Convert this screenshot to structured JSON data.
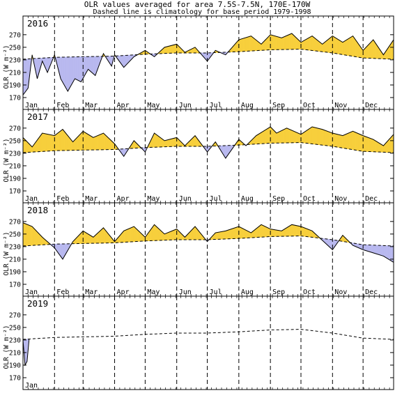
{
  "title": "OLR values averaged for area 7.5S-7.5N, 170E-170W",
  "subtitle": "Dashed line is climatology for base period 1979-1998",
  "chart_data": {
    "type": "area",
    "ylabel": "OLR (W m⁻²)",
    "months": [
      "Jan",
      "Feb",
      "Mar",
      "Apr",
      "May",
      "Jun",
      "Jul",
      "Aug",
      "Sep",
      "Oct",
      "Nov",
      "Dec"
    ],
    "yticks": [
      170,
      190,
      210,
      230,
      250,
      270
    ],
    "ylim": [
      160,
      282
    ],
    "grid": "dashed vertical lines at month boundaries",
    "colors": {
      "above_climatology": "#f7cf3c",
      "below_climatology": "#b9b9ef",
      "line": "#000000"
    },
    "climatology": {
      "x_day": [
        1,
        32,
        60,
        91,
        121,
        152,
        182,
        213,
        244,
        274,
        305,
        335,
        365
      ],
      "values": [
        231,
        234,
        235,
        236,
        239,
        241,
        241,
        243,
        246,
        247,
        241,
        233,
        231
      ]
    },
    "panels": [
      {
        "year": "2016",
        "x_day": [
          1,
          6,
          10,
          15,
          20,
          25,
          32,
          38,
          45,
          52,
          58,
          65,
          72,
          80,
          88,
          91,
          100,
          110,
          121,
          130,
          140,
          152,
          160,
          170,
          182,
          190,
          200,
          213,
          225,
          235,
          244,
          255,
          265,
          274,
          285,
          295,
          305,
          315,
          325,
          335,
          345,
          355,
          365
        ],
        "values": [
          174,
          185,
          238,
          200,
          228,
          210,
          238,
          200,
          180,
          200,
          195,
          215,
          205,
          240,
          220,
          238,
          218,
          235,
          245,
          235,
          250,
          255,
          242,
          250,
          228,
          245,
          238,
          262,
          268,
          255,
          270,
          265,
          272,
          258,
          268,
          255,
          268,
          258,
          268,
          245,
          262,
          238,
          262
        ]
      },
      {
        "year": "2017",
        "x_day": [
          1,
          10,
          20,
          32,
          40,
          50,
          60,
          70,
          80,
          91,
          100,
          110,
          121,
          130,
          140,
          152,
          160,
          170,
          182,
          190,
          200,
          213,
          220,
          230,
          244,
          250,
          260,
          274,
          285,
          295,
          305,
          315,
          325,
          335,
          345,
          355,
          365
        ],
        "values": [
          255,
          240,
          262,
          258,
          268,
          248,
          265,
          255,
          262,
          245,
          225,
          250,
          232,
          262,
          250,
          255,
          242,
          258,
          232,
          248,
          222,
          252,
          242,
          258,
          272,
          262,
          270,
          260,
          272,
          268,
          262,
          258,
          265,
          258,
          252,
          242,
          260
        ]
      },
      {
        "year": "2018",
        "x_day": [
          1,
          10,
          20,
          32,
          40,
          50,
          60,
          70,
          80,
          91,
          100,
          110,
          121,
          130,
          140,
          152,
          160,
          170,
          182,
          190,
          200,
          213,
          225,
          235,
          244,
          255,
          265,
          274,
          285,
          295,
          305,
          315,
          325,
          335,
          345,
          355,
          365
        ],
        "values": [
          268,
          262,
          245,
          228,
          210,
          238,
          255,
          245,
          260,
          238,
          255,
          262,
          245,
          265,
          250,
          258,
          245,
          262,
          238,
          252,
          255,
          262,
          252,
          265,
          258,
          255,
          265,
          262,
          255,
          240,
          225,
          248,
          232,
          225,
          220,
          215,
          205
        ]
      },
      {
        "year": "2019",
        "x_day": [
          1,
          3,
          5,
          7
        ],
        "values": [
          230,
          190,
          196,
          231
        ]
      }
    ]
  }
}
